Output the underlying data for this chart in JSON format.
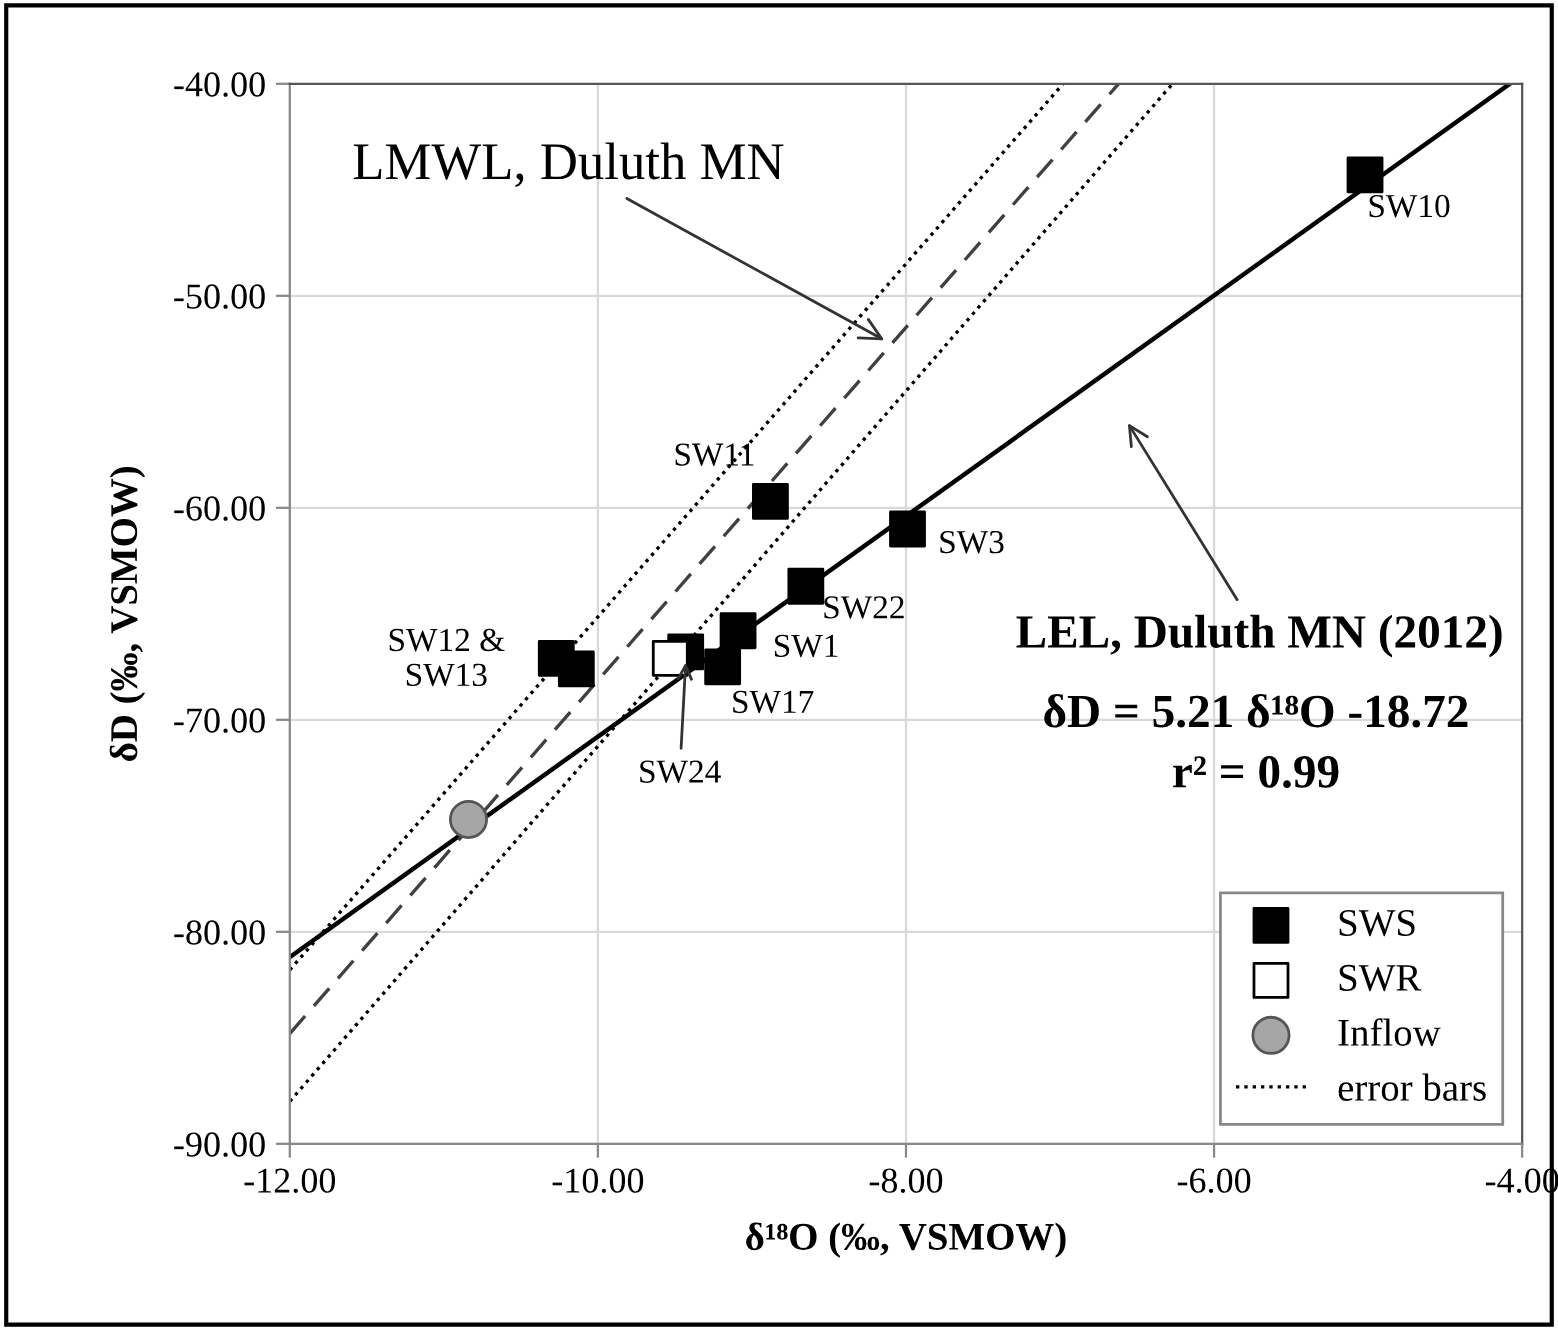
{
  "chart_data": {
    "type": "scatter",
    "xlabel": "δ¹⁸O (‰, VSMOW)",
    "ylabel": "δD (‰, VSMOW)",
    "xlim": [
      -12,
      -4
    ],
    "ylim": [
      -90,
      -40
    ],
    "xticks": [
      {
        "value": -12,
        "label": "-12.00"
      },
      {
        "value": -10,
        "label": "-10.00"
      },
      {
        "value": -8,
        "label": "-8.00"
      },
      {
        "value": -6,
        "label": "-6.00"
      },
      {
        "value": -4,
        "label": "-4.00"
      }
    ],
    "yticks": [
      {
        "value": -90,
        "label": "-90.00"
      },
      {
        "value": -80,
        "label": "-80.00"
      },
      {
        "value": -70,
        "label": "-70.00"
      },
      {
        "value": -60,
        "label": "-60.00"
      },
      {
        "value": -50,
        "label": "-50.00"
      },
      {
        "value": -40,
        "label": "-40.00"
      }
    ],
    "grid": true,
    "legend": "bottom right",
    "series": [
      {
        "name": "SWS",
        "color": "#000000",
        "marker": "square",
        "x": [
          -5.02,
          -8.88,
          -7.99,
          -8.65,
          -9.09,
          -9.43,
          -9.19,
          -10.27,
          -10.14
        ],
        "values": [
          -44.3,
          -59.7,
          -61.0,
          -63.7,
          -65.8,
          -66.8,
          -67.5,
          -67.1,
          -67.6
        ]
      },
      {
        "name": "SWR",
        "color": "#ffffff",
        "marker": "square",
        "x": [
          -9.53
        ],
        "values": [
          -67.1
        ]
      },
      {
        "name": "Inflow",
        "color": "#a6a6a6",
        "marker": "circle",
        "x": [
          -10.84
        ],
        "values": [
          -74.7
        ]
      },
      {
        "type": "line",
        "color": "#000000",
        "line_style": "solid",
        "marker": "none",
        "x": [
          -12,
          -4.08
        ],
        "values": [
          -81.2,
          -40.0
        ]
      },
      {
        "type": "line",
        "color": "#404040",
        "line_style": "dashed",
        "marker": "none",
        "x": [
          -12,
          -6.62
        ],
        "values": [
          -84.8,
          -40.0
        ]
      },
      {
        "type": "line",
        "name": "error bars",
        "color": "#000000",
        "line_style": "dotted",
        "marker": "none",
        "x": [
          -12,
          -6.27
        ],
        "values": [
          -88.0,
          -40.0
        ]
      },
      {
        "type": "line",
        "color": "#000000",
        "line_style": "dotted",
        "marker": "none",
        "x": [
          -12,
          -6.98
        ],
        "values": [
          -81.8,
          -40.0
        ]
      }
    ],
    "annotations": [
      {
        "text": "LMWL, Duluth MN",
        "x": -8.14,
        "y": -52.1
      },
      "LEL, Duluth MN (2012)",
      "δD = 5.21 δ¹⁸O -18.72",
      "r² = 0.99",
      {
        "text": "SW10",
        "x": -5.02,
        "y": -44.3
      },
      {
        "text": "SW11",
        "x": -8.88,
        "y": -59.7
      },
      {
        "text": "SW3",
        "x": -7.99,
        "y": -61.0
      },
      {
        "text": "SW22",
        "x": -8.65,
        "y": -63.7
      },
      {
        "text": "SW1",
        "x": -9.09,
        "y": -65.8
      },
      {
        "text": "SW17",
        "x": -9.19,
        "y": -67.5
      },
      {
        "text": "SW24",
        "x": -9.43,
        "y": -67.3
      },
      {
        "text": "SW12 &\nSW13",
        "x": -10.27,
        "y": -67.1
      }
    ]
  }
}
